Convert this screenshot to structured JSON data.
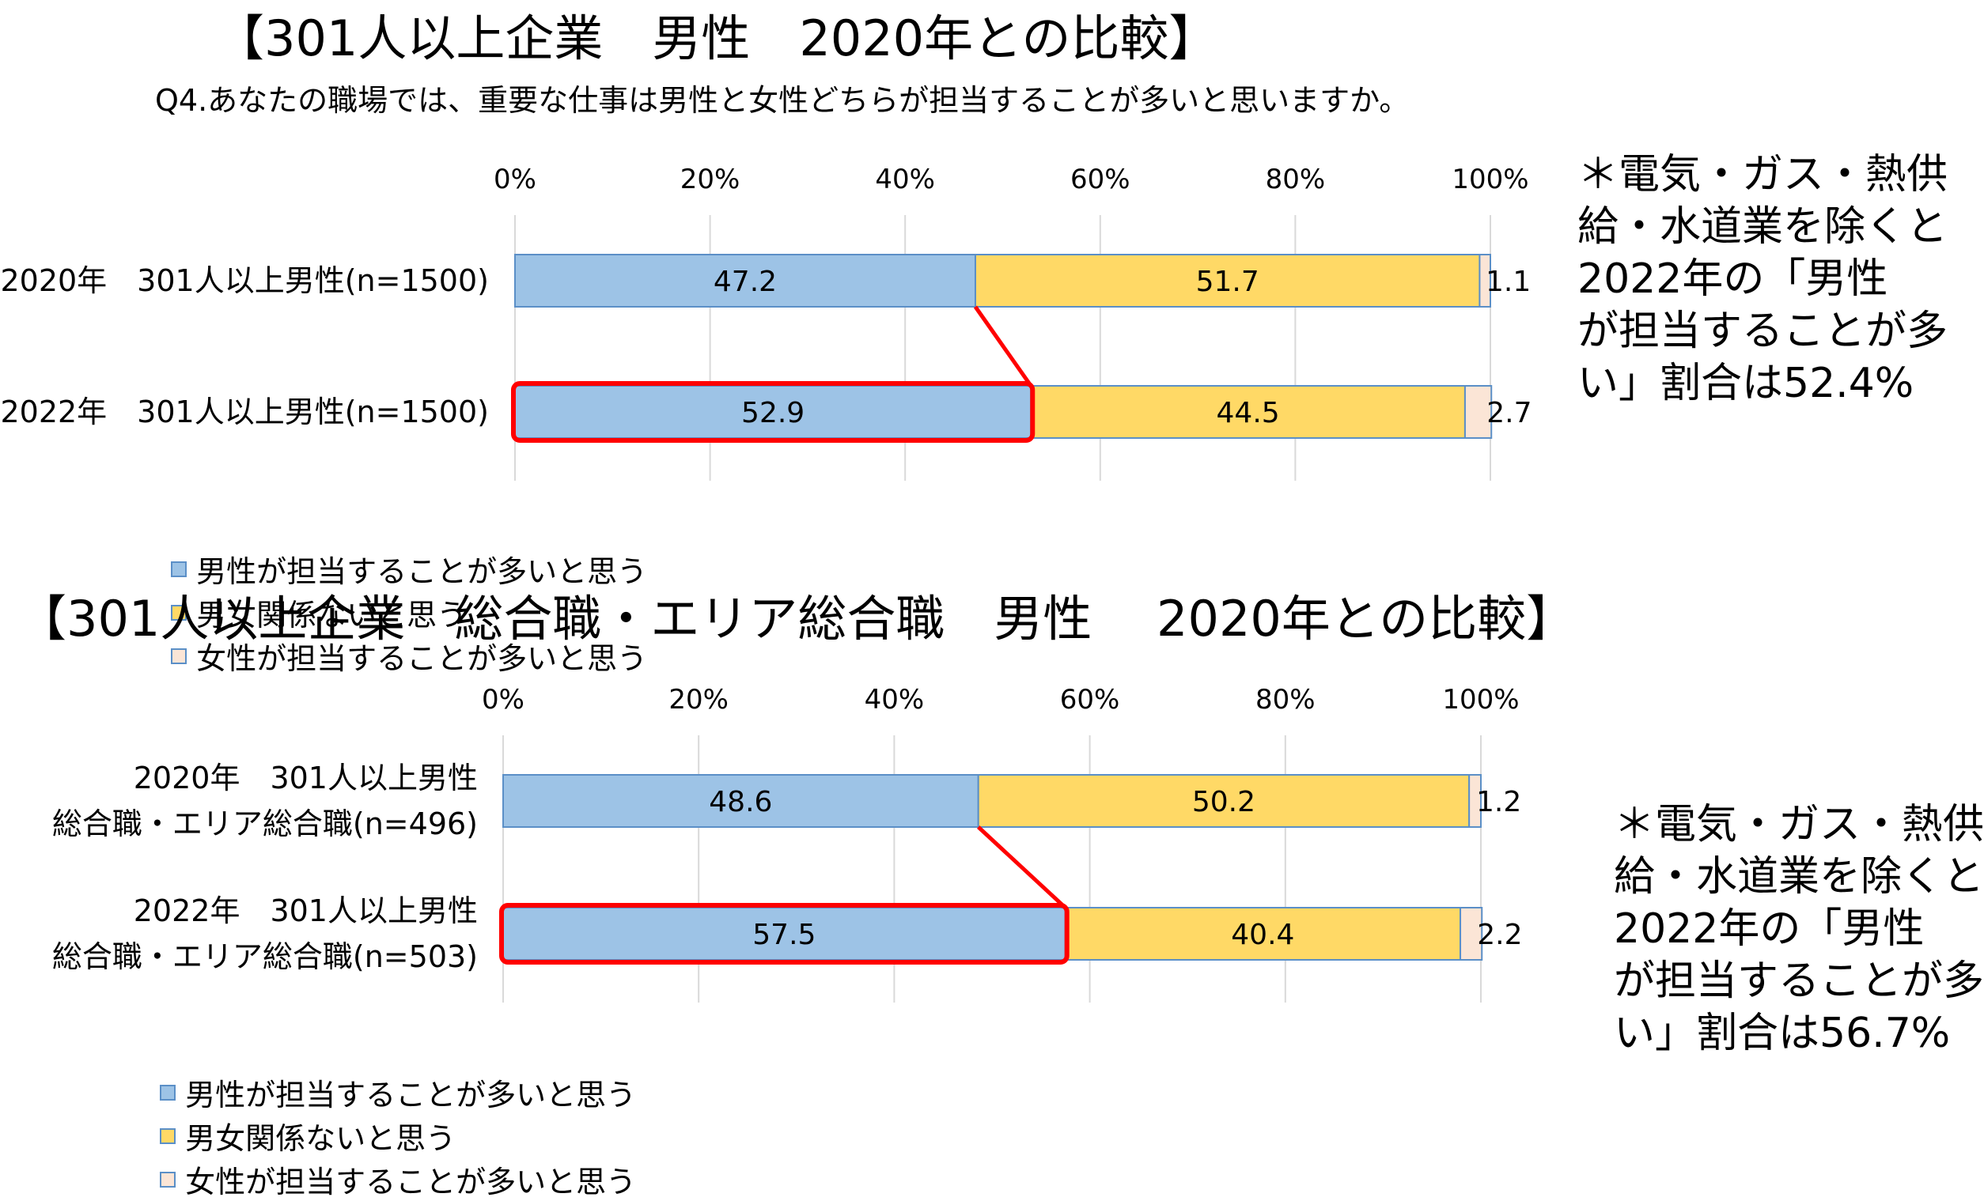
{
  "colors": {
    "male_more": "#9dc3e6",
    "no_difference": "#ffd966",
    "female_more": "#fbe5d6",
    "bar_border": "#5b8fc7",
    "highlight": "#ff0000",
    "grid": "#d9d9d9"
  },
  "top": {
    "title": "【301人以上企業　男性　2020年との比較】",
    "question": "Q4.あなたの職場では、重要な仕事は男性と女性どちらが担当することが多いと思いますか。",
    "note": "＊電気・ガス・熱供\n給・水道業を除くと\n2022年の「男性\nが担当することが多\nい」割合は52.4%",
    "highlight_row": 1
  },
  "bottom": {
    "title": "【301人以上企業　総合職・エリア総合職　男性　 2020年との比較】",
    "note": "＊電気・ガス・熱供\n給・水道業を除くと\n2022年の「男性\nが担当することが多\nい」割合は56.7%",
    "highlight_row": 1
  },
  "legend": {
    "male_more": "男性が担当することが多いと思う",
    "no_difference": "男女関係ないと思う",
    "female_more": "女性が担当することが多いと思う"
  },
  "chart_data": [
    {
      "type": "bar",
      "orientation": "horizontal",
      "stacked": true,
      "xlim": [
        0,
        100
      ],
      "ticks": [
        "0%",
        "20%",
        "40%",
        "60%",
        "80%",
        "100%"
      ],
      "categories": [
        "2020年　301人以上男性(n=1500)",
        "2022年　301人以上男性(n=1500)"
      ],
      "series": [
        {
          "name": "男性が担当することが多いと思う",
          "values": [
            47.2,
            52.9
          ]
        },
        {
          "name": "男女関係ないと思う",
          "values": [
            51.7,
            44.5
          ]
        },
        {
          "name": "女性が担当することが多いと思う",
          "values": [
            1.1,
            2.7
          ]
        }
      ],
      "grid": true,
      "legend": "bottom"
    },
    {
      "type": "bar",
      "orientation": "horizontal",
      "stacked": true,
      "xlim": [
        0,
        100
      ],
      "ticks": [
        "0%",
        "20%",
        "40%",
        "60%",
        "80%",
        "100%"
      ],
      "categories": [
        "2020年　301人以上男性\n総合職・エリア総合職(n=496)",
        "2022年　301人以上男性\n総合職・エリア総合職(n=503)"
      ],
      "series": [
        {
          "name": "男性が担当することが多いと思う",
          "values": [
            48.6,
            57.5
          ]
        },
        {
          "name": "男女関係ないと思う",
          "values": [
            50.2,
            40.4
          ]
        },
        {
          "name": "女性が担当することが多いと思う",
          "values": [
            1.2,
            2.2
          ]
        }
      ],
      "grid": true,
      "legend": "bottom"
    }
  ]
}
